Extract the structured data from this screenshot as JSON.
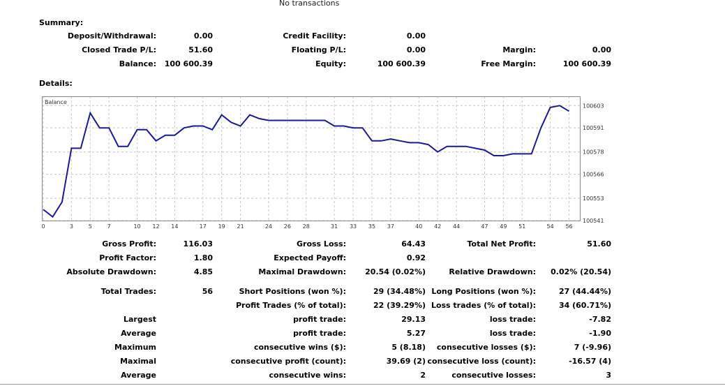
{
  "header": {
    "no_transactions": "No transactions"
  },
  "summary": {
    "title": "Summary:",
    "deposit_label": "Deposit/Withdrawal:",
    "deposit_value": "0.00",
    "credit_label": "Credit Facility:",
    "credit_value": "0.00",
    "closed_label": "Closed Trade P/L:",
    "closed_value": "51.60",
    "floating_label": "Floating P/L:",
    "floating_value": "0.00",
    "margin_label": "Margin:",
    "margin_value": "0.00",
    "balance_label": "Balance:",
    "balance_value": "100 600.39",
    "equity_label": "Equity:",
    "equity_value": "100 600.39",
    "free_margin_label": "Free Margin:",
    "free_margin_value": "100 600.39"
  },
  "details": {
    "title": "Details:"
  },
  "chart_data": {
    "type": "line",
    "legend": "Balance",
    "series": [
      {
        "name": "Balance",
        "color": "#1a1a99",
        "x": [
          0,
          1,
          2,
          3,
          4,
          5,
          6,
          7,
          8,
          9,
          10,
          11,
          12,
          13,
          14,
          15,
          16,
          17,
          18,
          19,
          20,
          21,
          22,
          23,
          24,
          25,
          26,
          27,
          28,
          29,
          30,
          31,
          32,
          33,
          34,
          35,
          36,
          37,
          38,
          39,
          40,
          41,
          42,
          43,
          44,
          45,
          46,
          47,
          48,
          49,
          50,
          51,
          52,
          53,
          54,
          55,
          56
        ],
        "values": [
          100547,
          100543,
          100551,
          100580,
          100580,
          100599,
          100591,
          100591,
          100581,
          100581,
          100590,
          100590,
          100584,
          100587,
          100587,
          100591,
          100592,
          100592,
          100590,
          100598,
          100594,
          100592,
          100598,
          100596,
          100595,
          100595,
          100595,
          100595,
          100595,
          100595,
          100595,
          100592,
          100592,
          100591,
          100591,
          100584,
          100584,
          100585,
          100584,
          100583,
          100583,
          100582,
          100578,
          100581,
          100581,
          100581,
          100580,
          100579,
          100576,
          100576,
          100577,
          100577,
          100577,
          100591,
          100602,
          100603,
          100600
        ]
      }
    ],
    "x_ticks": [
      0,
      3,
      5,
      7,
      10,
      12,
      14,
      17,
      19,
      21,
      24,
      26,
      28,
      31,
      33,
      35,
      37,
      40,
      42,
      44,
      47,
      49,
      51,
      54,
      56
    ],
    "y_ticks": [
      100541,
      100553,
      100566,
      100578,
      100591,
      100603
    ],
    "ylim": [
      100541,
      100608
    ],
    "grid": true
  },
  "stats": {
    "gross_profit_label": "Gross Profit:",
    "gross_profit_value": "116.03",
    "gross_loss_label": "Gross Loss:",
    "gross_loss_value": "64.43",
    "net_profit_label": "Total Net Profit:",
    "net_profit_value": "51.60",
    "profit_factor_label": "Profit Factor:",
    "profit_factor_value": "1.80",
    "expected_payoff_label": "Expected Payoff:",
    "expected_payoff_value": "0.92",
    "abs_dd_label": "Absolute Drawdown:",
    "abs_dd_value": "4.85",
    "max_dd_label": "Maximal Drawdown:",
    "max_dd_value": "20.54 (0.02%)",
    "rel_dd_label": "Relative Drawdown:",
    "rel_dd_value": "0.02% (20.54)",
    "total_trades_label": "Total Trades:",
    "total_trades_value": "56",
    "short_label": "Short Positions (won %):",
    "short_value": "29 (34.48%)",
    "long_label": "Long Positions (won %):",
    "long_value": "27 (44.44%)",
    "profit_trades_label": "Profit Trades (% of total):",
    "profit_trades_value": "22 (39.29%)",
    "loss_trades_label": "Loss trades (% of total):",
    "loss_trades_value": "34 (60.71%)",
    "largest_label": "Largest",
    "largest_profit_label": "profit trade:",
    "largest_profit_value": "29.13",
    "largest_loss_label": "loss trade:",
    "largest_loss_value": "-7.82",
    "average_label": "Average",
    "avg_profit_label": "profit trade:",
    "avg_profit_value": "5.27",
    "avg_loss_label": "loss trade:",
    "avg_loss_value": "-1.90",
    "maximum_label": "Maximum",
    "max_cons_wins_label": "consecutive wins ($):",
    "max_cons_wins_value": "5 (8.18)",
    "max_cons_losses_label": "consecutive losses ($):",
    "max_cons_losses_value": "7 (-9.96)",
    "maximal_label": "Maximal",
    "maximal_cons_profit_label": "consecutive profit (count):",
    "maximal_cons_profit_value": "39.69 (2)",
    "maximal_cons_loss_label": "consecutive loss (count):",
    "maximal_cons_loss_value": "-16.57 (4)",
    "average2_label": "Average",
    "avg_cons_wins_label": "consecutive wins:",
    "avg_cons_wins_value": "2",
    "avg_cons_losses_label": "consecutive losses:",
    "avg_cons_losses_value": "3"
  }
}
